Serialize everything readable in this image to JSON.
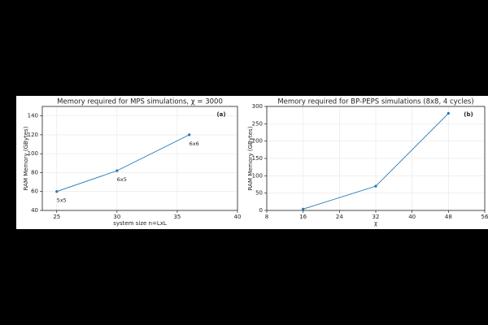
{
  "chart_data": [
    {
      "type": "line",
      "title": "Memory required for MPS simulations, χ = 3000",
      "panel_label": "(a)",
      "x_label": "system size n=LxL",
      "y_label": "RAM Memory (GBytes)",
      "x": [
        25,
        30,
        36
      ],
      "series": [
        {
          "color": "#1f77b4",
          "values": [
            60,
            82,
            120
          ]
        }
      ],
      "point_labels": [
        "5x5",
        "6x5",
        "6x6"
      ],
      "xlim": [
        23.8,
        40
      ],
      "xticks": [
        25,
        30,
        35,
        40
      ],
      "ylim": [
        40,
        150
      ],
      "yticks": [
        40,
        60,
        80,
        100,
        120,
        140
      ],
      "grid": true
    },
    {
      "type": "line",
      "title": "Memory required for BP-PEPS simulations (8x8, 4 cycles)",
      "panel_label": "(b)",
      "x_label": "χ",
      "y_label": "RAM Memory (GBytes)",
      "x": [
        16,
        32,
        48
      ],
      "series": [
        {
          "color": "#1f77b4",
          "values": [
            4,
            70,
            280
          ]
        }
      ],
      "xlim": [
        8,
        56
      ],
      "xticks": [
        8,
        16,
        24,
        32,
        40,
        48,
        56
      ],
      "ylim": [
        0,
        300
      ],
      "yticks": [
        0,
        50,
        100,
        150,
        200,
        250,
        300
      ],
      "grid": true
    }
  ]
}
